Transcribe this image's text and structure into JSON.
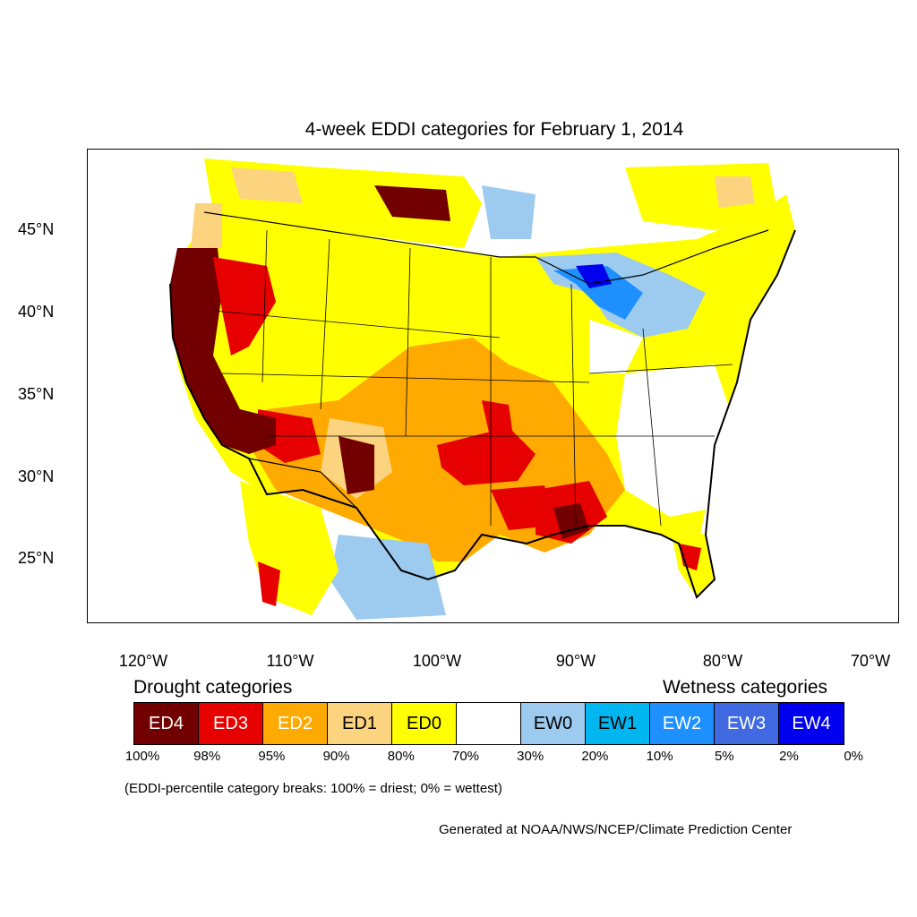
{
  "title": "4-week EDDI categories for February 1, 2014",
  "lat_labels": [
    "45°N",
    "40°N",
    "35°N",
    "30°N",
    "25°N"
  ],
  "lon_labels": [
    "120°W",
    "110°W",
    "100°W",
    "90°W",
    "80°W",
    "70°W"
  ],
  "legend": {
    "drought_heading": "Drought categories",
    "wetness_heading": "Wetness categories",
    "categories": [
      {
        "label": "ED4",
        "color": "#730000",
        "text_color": "#ffffff"
      },
      {
        "label": "ED3",
        "color": "#e60000",
        "text_color": "#ffffff"
      },
      {
        "label": "ED2",
        "color": "#ffaa00",
        "text_color": "#ffffff"
      },
      {
        "label": "ED1",
        "color": "#fcd37f",
        "text_color": "#000000"
      },
      {
        "label": "ED0",
        "color": "#ffff00",
        "text_color": "#000000"
      },
      {
        "label": "",
        "color": "#ffffff",
        "text_color": "#000000"
      },
      {
        "label": "EW0",
        "color": "#9ccbef",
        "text_color": "#000000"
      },
      {
        "label": "EW1",
        "color": "#00b6f0",
        "text_color": "#000000"
      },
      {
        "label": "EW2",
        "color": "#1e90ff",
        "text_color": "#ffffff"
      },
      {
        "label": "EW3",
        "color": "#4169e1",
        "text_color": "#ffffff"
      },
      {
        "label": "EW4",
        "color": "#0000ee",
        "text_color": "#ffffff"
      }
    ],
    "percentiles": [
      "100%",
      "98%",
      "95%",
      "90%",
      "80%",
      "70%",
      "30%",
      "20%",
      "10%",
      "5%",
      "2%",
      "0%"
    ]
  },
  "note": "(EDDI-percentile category breaks: 100% = driest; 0% = wettest)",
  "credit": "Generated at NOAA/NWS/NCEP/Climate Prediction Center"
}
